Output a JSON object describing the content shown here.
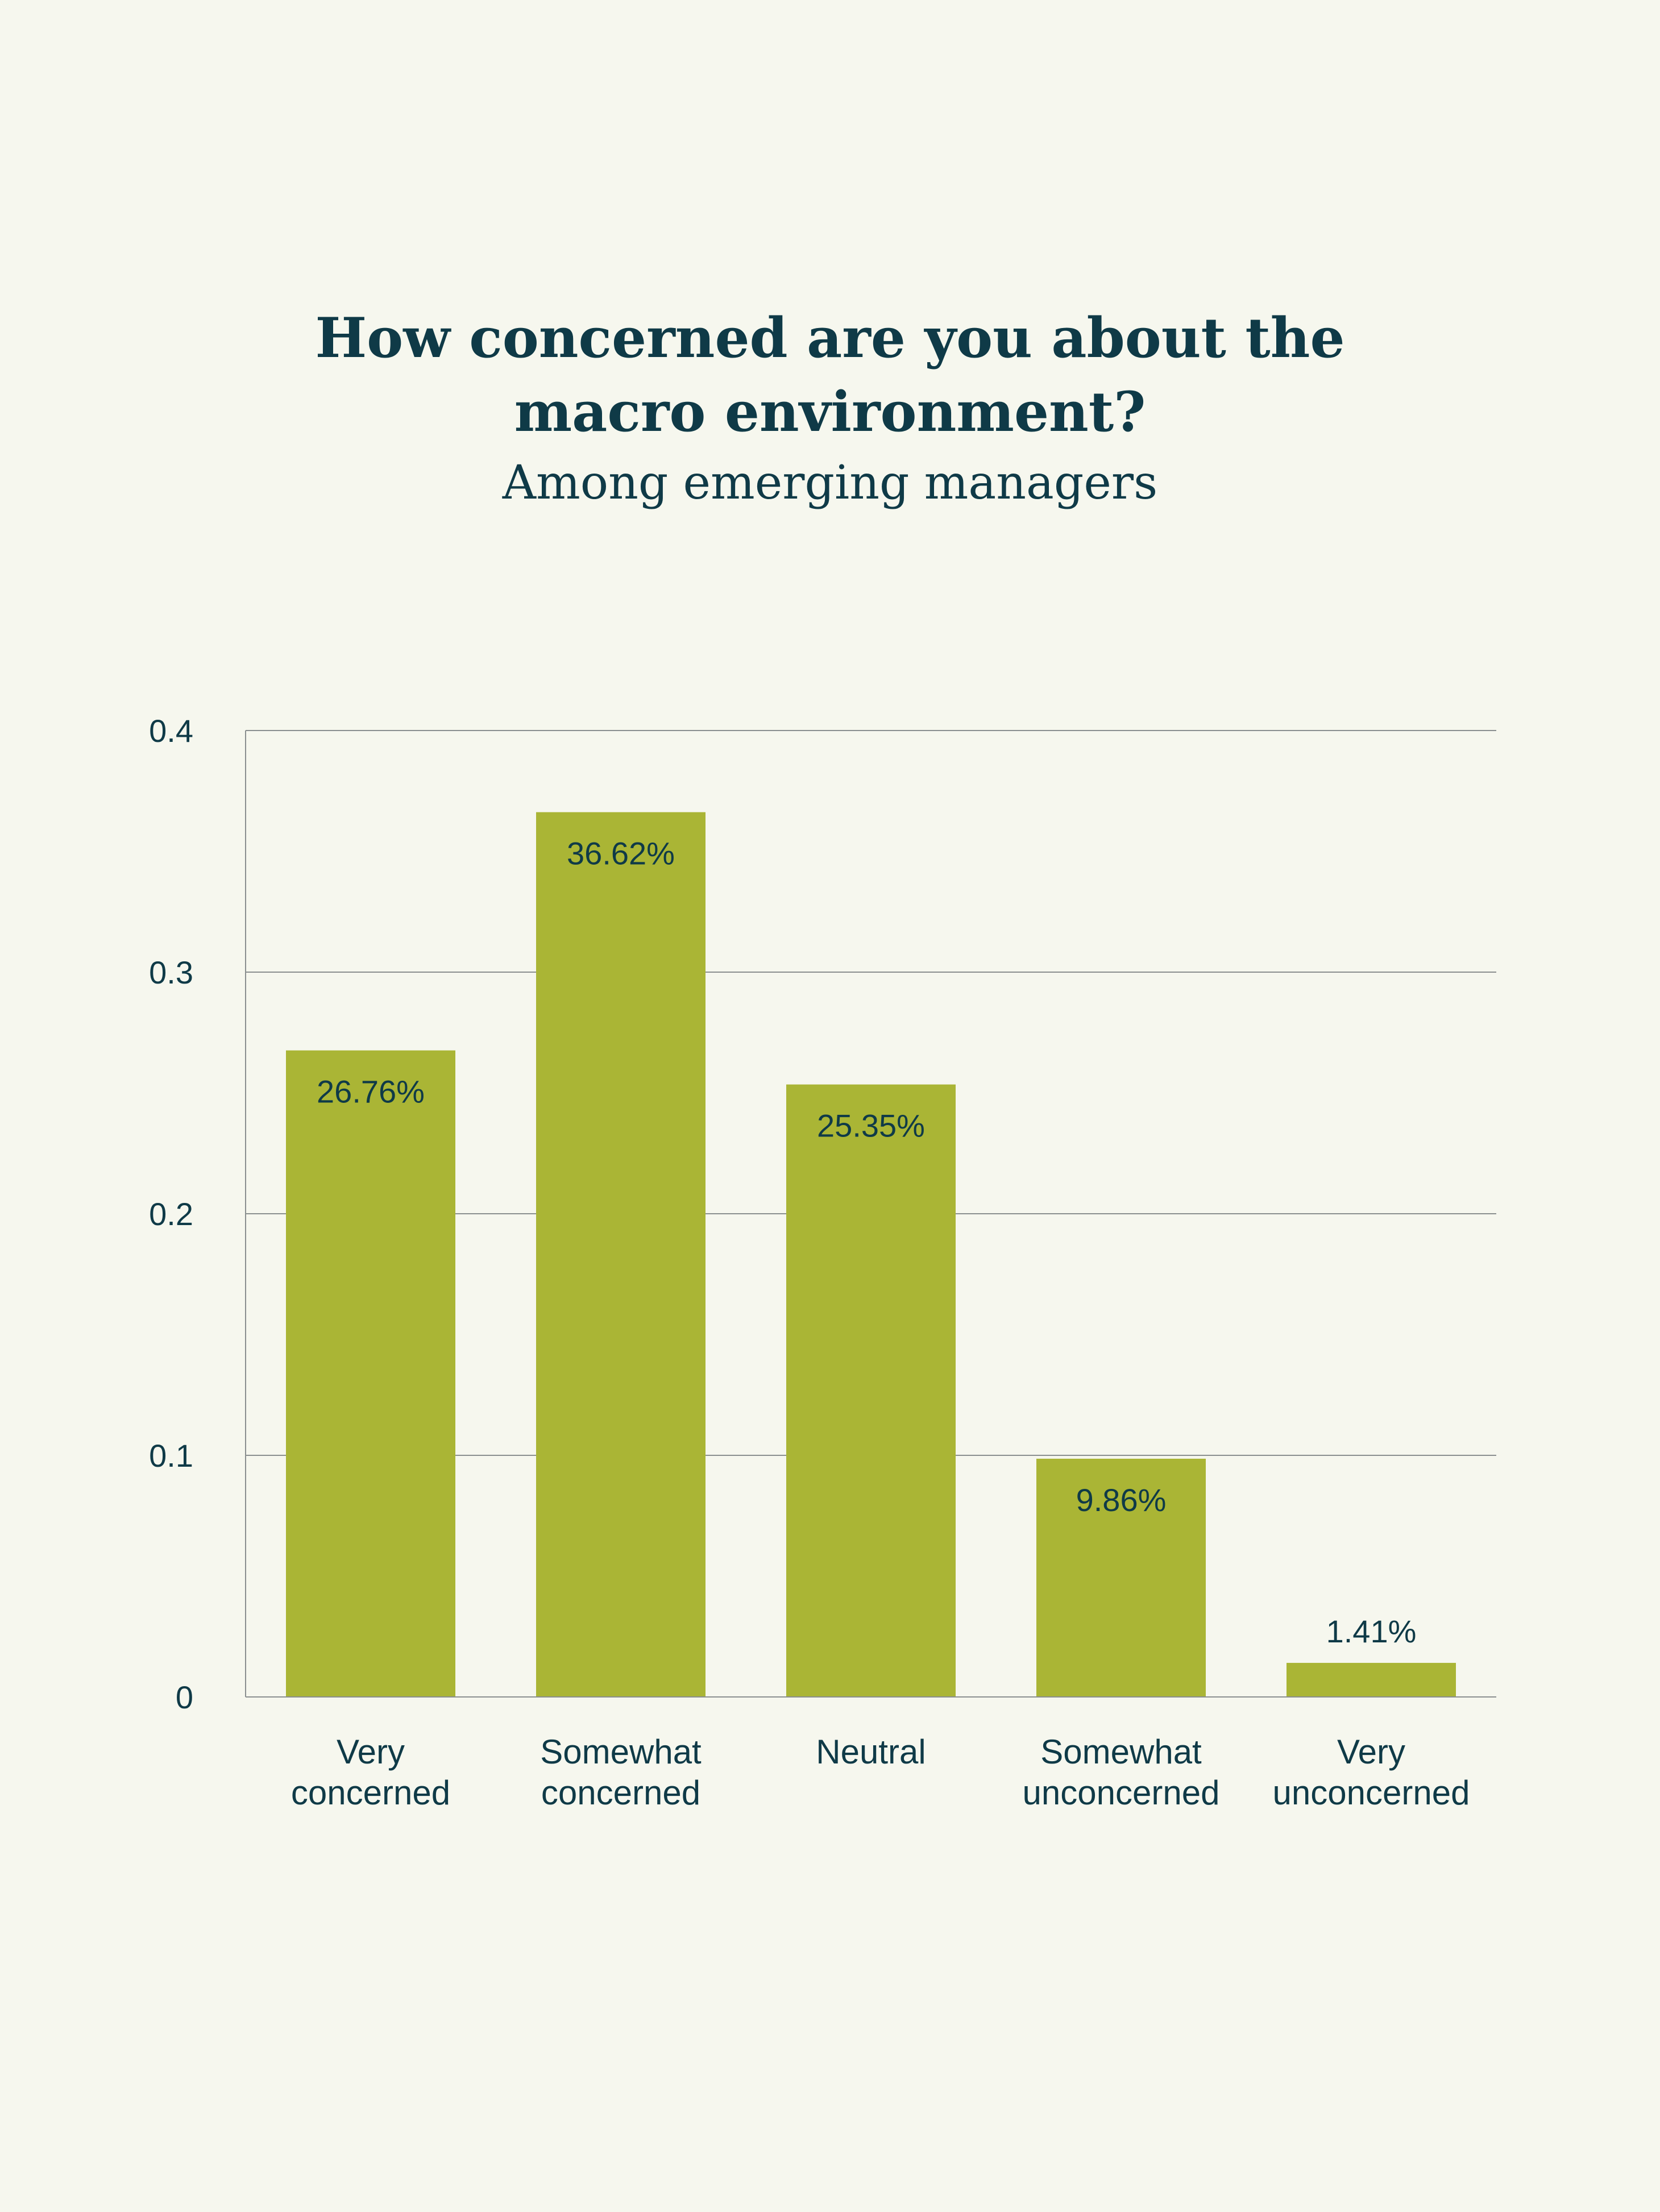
{
  "chart_data": {
    "type": "bar",
    "title_lines": [
      "How concerned are you about the",
      "macro environment?"
    ],
    "subtitle": "Among emerging managers",
    "categories": [
      [
        "Very",
        "concerned"
      ],
      [
        "Somewhat",
        "concerned"
      ],
      [
        "Neutral"
      ],
      [
        "Somewhat",
        "unconcerned"
      ],
      [
        "Very",
        "unconcerned"
      ]
    ],
    "values": [
      0.2676,
      0.3662,
      0.2535,
      0.0986,
      0.0141
    ],
    "data_labels": [
      "26.76%",
      "36.62%",
      "25.35%",
      "9.86%",
      "1.41%"
    ],
    "yticks": [
      0,
      0.1,
      0.2,
      0.3,
      0.4
    ],
    "ytick_labels": [
      "0",
      "0.1",
      "0.2",
      "0.3",
      "0.4"
    ],
    "ylim": [
      0,
      0.4
    ],
    "grid": true,
    "legend": "none",
    "colors": {
      "bar": "#aab535",
      "text": "#0f3a47",
      "grid": "#8a8f8f",
      "background": "#f6f7ee"
    }
  }
}
